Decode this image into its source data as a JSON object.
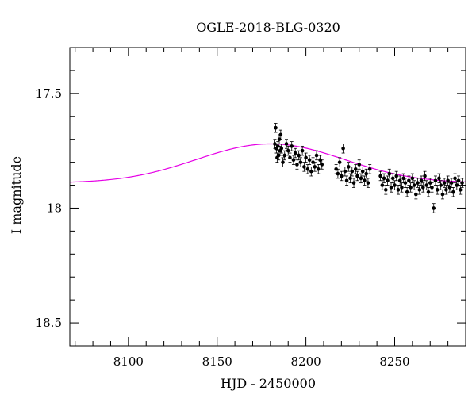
{
  "chart_data": {
    "type": "scatter",
    "title": "OGLE-2018-BLG-0320",
    "xlabel": "HJD - 2450000",
    "ylabel": "I magnitude",
    "xlim": [
      8067,
      8290
    ],
    "ylim": [
      18.6,
      17.3
    ],
    "y_inverted": true,
    "x_ticks": [
      {
        "value": 8100,
        "label": "8100"
      },
      {
        "value": 8150,
        "label": "8150"
      },
      {
        "value": 8200,
        "label": "8200"
      },
      {
        "value": 8250,
        "label": "8250"
      }
    ],
    "y_ticks": [
      {
        "value": 17.5,
        "label": "17.5"
      },
      {
        "value": 18,
        "label": "18"
      },
      {
        "value": 18.5,
        "label": "18.5"
      }
    ],
    "x_minor_step": 10,
    "y_minor_step": 0.1,
    "grid": false,
    "legend": "none",
    "colors": {
      "model": "#e600e6",
      "points": "#000000",
      "frame": "#000000"
    },
    "model": {
      "name": "",
      "baseline": 17.89,
      "peak_mag": 17.72,
      "t0": 8180,
      "tE": 40
    },
    "observations": [
      [
        8182.5,
        17.72,
        0.02
      ],
      [
        8183.0,
        17.65,
        0.02
      ],
      [
        8183.4,
        17.74,
        0.02
      ],
      [
        8183.8,
        17.78,
        0.02
      ],
      [
        8184.2,
        17.73,
        0.02
      ],
      [
        8184.6,
        17.77,
        0.02
      ],
      [
        8185.0,
        17.7,
        0.02
      ],
      [
        8185.4,
        17.75,
        0.02
      ],
      [
        8185.8,
        17.68,
        0.02
      ],
      [
        8186.2,
        17.74,
        0.02
      ],
      [
        8187.0,
        17.8,
        0.02
      ],
      [
        8188.0,
        17.77,
        0.02
      ],
      [
        8189.0,
        17.72,
        0.02
      ],
      [
        8190.0,
        17.75,
        0.02
      ],
      [
        8191.0,
        17.78,
        0.02
      ],
      [
        8192.0,
        17.73,
        0.02
      ],
      [
        8193.0,
        17.79,
        0.02
      ],
      [
        8194.0,
        17.76,
        0.02
      ],
      [
        8195.0,
        17.81,
        0.02
      ],
      [
        8196.0,
        17.77,
        0.02
      ],
      [
        8197.0,
        17.8,
        0.02
      ],
      [
        8198.0,
        17.75,
        0.02
      ],
      [
        8199.0,
        17.82,
        0.02
      ],
      [
        8200.0,
        17.78,
        0.02
      ],
      [
        8201.0,
        17.83,
        0.02
      ],
      [
        8202.0,
        17.79,
        0.02
      ],
      [
        8203.0,
        17.84,
        0.02
      ],
      [
        8204.0,
        17.8,
        0.02
      ],
      [
        8205.0,
        17.82,
        0.02
      ],
      [
        8206.0,
        17.77,
        0.02
      ],
      [
        8207.0,
        17.83,
        0.02
      ],
      [
        8208.0,
        17.79,
        0.02
      ],
      [
        8209.0,
        17.81,
        0.02
      ],
      [
        8217.0,
        17.83,
        0.02
      ],
      [
        8218.0,
        17.85,
        0.02
      ],
      [
        8219.0,
        17.8,
        0.02
      ],
      [
        8220.0,
        17.86,
        0.02
      ],
      [
        8221.0,
        17.74,
        0.02
      ],
      [
        8222.0,
        17.84,
        0.02
      ],
      [
        8223.0,
        17.88,
        0.02
      ],
      [
        8224.0,
        17.82,
        0.02
      ],
      [
        8225.0,
        17.87,
        0.02
      ],
      [
        8226.0,
        17.84,
        0.02
      ],
      [
        8227.0,
        17.89,
        0.02
      ],
      [
        8228.0,
        17.83,
        0.02
      ],
      [
        8229.0,
        17.86,
        0.02
      ],
      [
        8230.0,
        17.81,
        0.02
      ],
      [
        8231.0,
        17.87,
        0.02
      ],
      [
        8232.0,
        17.84,
        0.02
      ],
      [
        8233.0,
        17.88,
        0.02
      ],
      [
        8234.0,
        17.85,
        0.02
      ],
      [
        8235.0,
        17.89,
        0.02
      ],
      [
        8236.0,
        17.83,
        0.02
      ],
      [
        8242.0,
        17.86,
        0.02
      ],
      [
        8243.0,
        17.9,
        0.02
      ],
      [
        8244.0,
        17.87,
        0.02
      ],
      [
        8245.0,
        17.92,
        0.02
      ],
      [
        8246.0,
        17.88,
        0.02
      ],
      [
        8247.0,
        17.85,
        0.02
      ],
      [
        8248.0,
        17.91,
        0.02
      ],
      [
        8249.0,
        17.87,
        0.02
      ],
      [
        8250.0,
        17.9,
        0.02
      ],
      [
        8251.0,
        17.86,
        0.02
      ],
      [
        8252.0,
        17.92,
        0.02
      ],
      [
        8253.0,
        17.88,
        0.02
      ],
      [
        8254.0,
        17.91,
        0.02
      ],
      [
        8255.0,
        17.87,
        0.02
      ],
      [
        8256.0,
        17.89,
        0.02
      ],
      [
        8257.0,
        17.93,
        0.02
      ],
      [
        8258.0,
        17.88,
        0.02
      ],
      [
        8259.0,
        17.91,
        0.02
      ],
      [
        8260.0,
        17.87,
        0.02
      ],
      [
        8261.0,
        17.9,
        0.02
      ],
      [
        8262.0,
        17.94,
        0.02
      ],
      [
        8263.0,
        17.89,
        0.02
      ],
      [
        8264.0,
        17.92,
        0.02
      ],
      [
        8265.0,
        17.88,
        0.02
      ],
      [
        8266.0,
        17.91,
        0.02
      ],
      [
        8267.0,
        17.86,
        0.02
      ],
      [
        8268.0,
        17.9,
        0.02
      ],
      [
        8269.0,
        17.93,
        0.02
      ],
      [
        8270.0,
        17.89,
        0.02
      ],
      [
        8271.0,
        17.91,
        0.02
      ],
      [
        8272.0,
        18.0,
        0.02
      ],
      [
        8273.0,
        17.88,
        0.02
      ],
      [
        8274.0,
        17.92,
        0.02
      ],
      [
        8275.0,
        17.87,
        0.02
      ],
      [
        8276.0,
        17.9,
        0.02
      ],
      [
        8277.0,
        17.94,
        0.02
      ],
      [
        8278.0,
        17.89,
        0.02
      ],
      [
        8279.0,
        17.92,
        0.02
      ],
      [
        8280.0,
        17.88,
        0.02
      ],
      [
        8281.0,
        17.91,
        0.02
      ],
      [
        8282.0,
        17.89,
        0.02
      ],
      [
        8283.0,
        17.93,
        0.02
      ],
      [
        8284.0,
        17.87,
        0.02
      ],
      [
        8285.0,
        17.9,
        0.02
      ],
      [
        8286.0,
        17.88,
        0.02
      ],
      [
        8287.0,
        17.92,
        0.02
      ],
      [
        8288.0,
        17.89,
        0.02
      ]
    ]
  }
}
